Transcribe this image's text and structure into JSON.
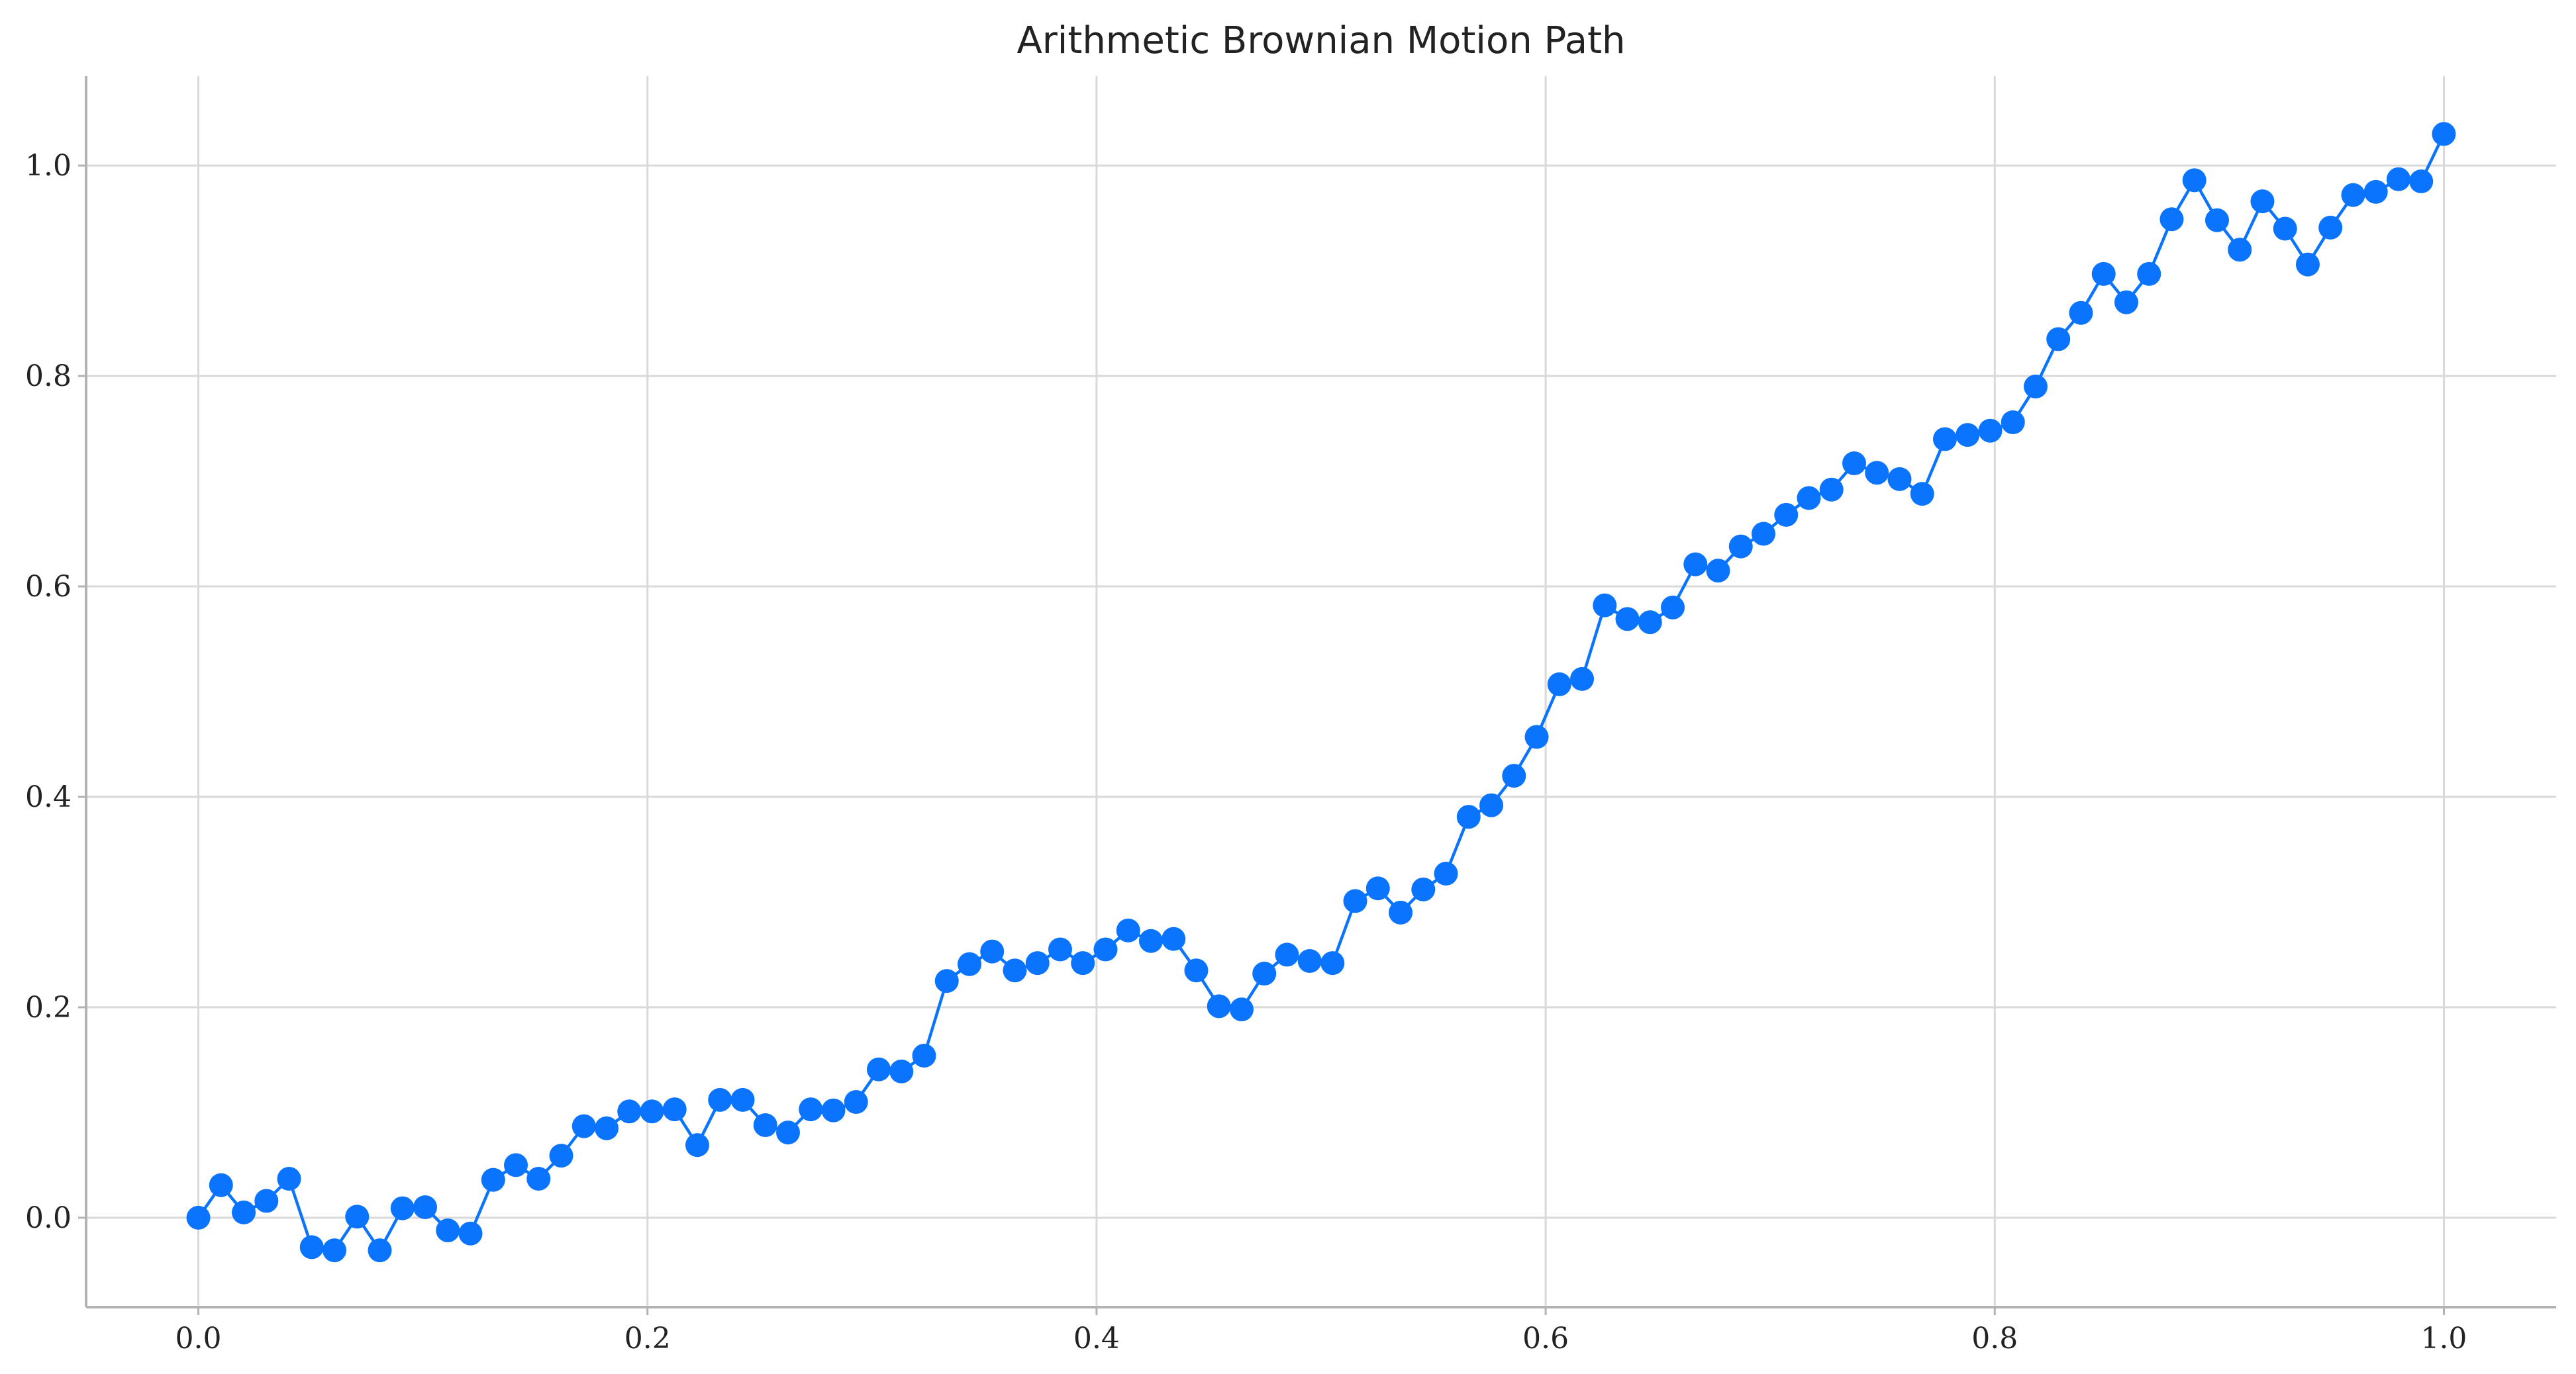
{
  "chart_data": {
    "type": "line",
    "title": "Arithmetic Brownian Motion Path",
    "xlabel": "",
    "ylabel": "",
    "xlim": [
      -0.05,
      1.05
    ],
    "ylim": [
      -0.085,
      1.085
    ],
    "xticks": [
      0.0,
      0.2,
      0.4,
      0.6,
      0.8,
      1.0
    ],
    "xtick_labels": [
      "0.0",
      "0.2",
      "0.4",
      "0.6",
      "0.8",
      "1.0"
    ],
    "yticks": [
      0.0,
      0.2,
      0.4,
      0.6,
      0.8,
      1.0
    ],
    "ytick_labels": [
      "0.0",
      "0.2",
      "0.4",
      "0.6",
      "0.8",
      "1.0"
    ],
    "grid": true,
    "marker": "circle",
    "color": "#0a74ff",
    "series": [
      {
        "x": [
          0.0,
          0.0101,
          0.0202,
          0.0303,
          0.0404,
          0.0505,
          0.0606,
          0.0707,
          0.0808,
          0.0909,
          0.101,
          0.1111,
          0.1212,
          0.1313,
          0.1414,
          0.1515,
          0.1616,
          0.1717,
          0.1818,
          0.1919,
          0.202,
          0.2121,
          0.2222,
          0.2323,
          0.2424,
          0.2525,
          0.2626,
          0.2727,
          0.2828,
          0.2929,
          0.303,
          0.3131,
          0.3232,
          0.3333,
          0.3434,
          0.3535,
          0.3636,
          0.3737,
          0.3838,
          0.3939,
          0.404,
          0.4141,
          0.4242,
          0.4343,
          0.4444,
          0.4545,
          0.4646,
          0.4747,
          0.4848,
          0.4949,
          0.5051,
          0.5152,
          0.5253,
          0.5354,
          0.5455,
          0.5556,
          0.5657,
          0.5758,
          0.5859,
          0.596,
          0.6061,
          0.6162,
          0.6263,
          0.6364,
          0.6465,
          0.6566,
          0.6667,
          0.6768,
          0.6869,
          0.697,
          0.7071,
          0.7172,
          0.7273,
          0.7374,
          0.7475,
          0.7576,
          0.7677,
          0.7778,
          0.7879,
          0.798,
          0.8081,
          0.8182,
          0.8283,
          0.8384,
          0.8485,
          0.8586,
          0.8687,
          0.8788,
          0.8889,
          0.899,
          0.9091,
          0.9192,
          0.9293,
          0.9394,
          0.9495,
          0.9596,
          0.9697,
          0.9798,
          0.9899,
          1.0
        ],
        "values": [
          0.0,
          0.031,
          0.005,
          0.016,
          0.037,
          -0.028,
          -0.031,
          0.001,
          -0.031,
          0.009,
          0.01,
          -0.012,
          -0.015,
          0.036,
          0.05,
          0.037,
          0.059,
          0.087,
          0.085,
          0.101,
          0.101,
          0.103,
          0.069,
          0.112,
          0.112,
          0.088,
          0.081,
          0.103,
          0.102,
          0.11,
          0.141,
          0.139,
          0.154,
          0.225,
          0.241,
          0.253,
          0.235,
          0.242,
          0.255,
          0.242,
          0.255,
          0.273,
          0.263,
          0.265,
          0.235,
          0.201,
          0.198,
          0.232,
          0.25,
          0.244,
          0.242,
          0.301,
          0.313,
          0.29,
          0.312,
          0.327,
          0.381,
          0.392,
          0.42,
          0.457,
          0.507,
          0.512,
          0.582,
          0.569,
          0.566,
          0.58,
          0.621,
          0.615,
          0.638,
          0.65,
          0.668,
          0.684,
          0.692,
          0.717,
          0.708,
          0.702,
          0.688,
          0.74,
          0.744,
          0.748,
          0.756,
          0.79,
          0.835,
          0.86,
          0.897,
          0.87,
          0.897,
          0.949,
          0.986,
          0.948,
          0.92,
          0.966,
          0.94,
          0.906,
          0.941,
          0.972,
          0.975,
          0.987,
          0.985,
          1.03
        ]
      }
    ]
  }
}
